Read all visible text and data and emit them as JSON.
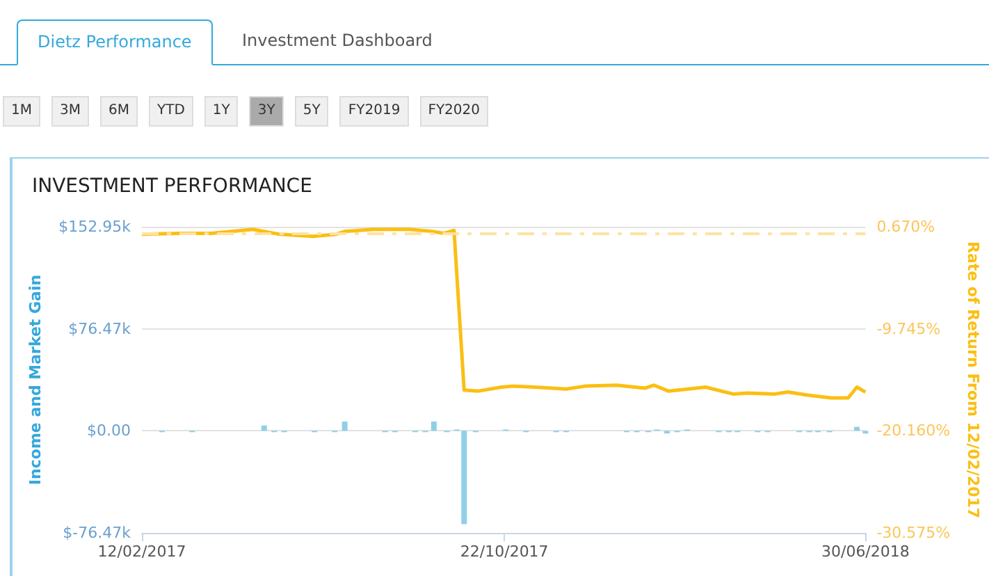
{
  "chart_data": {
    "type": "bar",
    "title": "INVESTMENT PERFORMANCE",
    "ylabel": "Income and Market Gain",
    "y2label": "Rate of Return From 12/02/2017",
    "annotations": [
      "Dietz Performance",
      "Investment Dashboard",
      "1M",
      "3M",
      "6M",
      "YTD",
      "1Y",
      "3Y",
      "5Y",
      "FY2019",
      "FY2020"
    ],
    "series": [
      {
        "color": "#8fd0e8",
        "x": [
          "2017-02-26",
          "2017-03-19",
          "2017-05-08",
          "2017-05-15",
          "2017-05-22",
          "2017-06-12",
          "2017-06-26",
          "2017-07-03",
          "2017-07-31",
          "2017-08-07",
          "2017-08-21",
          "2017-08-28",
          "2017-09-03",
          "2017-09-12",
          "2017-09-19",
          "2017-09-24",
          "2017-10-02",
          "2017-10-23",
          "2017-11-06",
          "2017-11-27",
          "2017-12-04",
          "2018-01-15",
          "2018-01-22",
          "2018-01-30",
          "2018-02-05",
          "2018-02-12",
          "2018-02-19",
          "2018-02-26",
          "2018-03-20",
          "2018-03-27",
          "2018-04-02",
          "2018-04-16",
          "2018-04-23",
          "2018-05-15",
          "2018-05-22",
          "2018-05-28",
          "2018-06-05",
          "2018-06-24",
          "2018-06-30"
        ],
        "values": [
          -1,
          -1,
          4,
          -1,
          -1,
          -1,
          -1,
          7,
          -1,
          -1,
          -1,
          -1,
          7,
          -1,
          1,
          -70,
          -1,
          1,
          -1,
          -1,
          -1,
          -1,
          -1,
          -1,
          1,
          -2,
          -1,
          1,
          -1,
          -1,
          -1,
          -1,
          -1,
          -1,
          -1,
          -1,
          -1,
          3,
          -2
        ]
      },
      {
        "type": "line",
        "axis": "y2",
        "color": "#fbbf12",
        "x": [
          "2017-02-12",
          "2017-03-10",
          "2017-04-01",
          "2017-04-30",
          "2017-05-19",
          "2017-06-11",
          "2017-06-27",
          "2017-07-03",
          "2017-07-23",
          "2017-08-17",
          "2017-09-02",
          "2017-09-10",
          "2017-09-17",
          "2017-09-24",
          "2017-10-04",
          "2017-10-20",
          "2017-10-27",
          "2017-11-12",
          "2017-12-04",
          "2017-12-17",
          "2018-01-08",
          "2018-01-28",
          "2018-02-03",
          "2018-02-13",
          "2018-03-11",
          "2018-03-30",
          "2018-04-09",
          "2018-04-28",
          "2018-05-07",
          "2018-05-20",
          "2018-06-06",
          "2018-06-18",
          "2018-06-24",
          "2018-06-30"
        ],
        "values": [
          -0.1,
          0.0,
          0.0,
          0.4,
          -0.1,
          -0.3,
          -0.1,
          0.2,
          0.4,
          0.4,
          0.2,
          0.0,
          0.3,
          -16.0,
          -16.1,
          -15.7,
          -15.6,
          -15.7,
          -15.9,
          -15.6,
          -15.5,
          -15.8,
          -15.5,
          -16.1,
          -15.7,
          -16.4,
          -16.3,
          -16.4,
          -16.2,
          -16.5,
          -16.8,
          -16.8,
          -15.7,
          -16.2
        ]
      }
    ],
    "xlim": [
      "2017-02-12",
      "2018-06-30"
    ],
    "xticks": [
      {
        "value": "2017-02-12",
        "label": "12/02/2017"
      },
      {
        "value": "2017-10-22",
        "label": "22/10/2017"
      },
      {
        "value": "2018-06-30",
        "label": "30/06/2018"
      }
    ],
    "ylim": [
      -76.47,
      152.95
    ],
    "yticks": [
      {
        "value": -76.47,
        "label": "$-76.47k"
      },
      {
        "value": 0,
        "label": "$0.00"
      },
      {
        "value": 76.47,
        "label": "$76.47k"
      },
      {
        "value": 152.95,
        "label": "$152.95k"
      }
    ],
    "y2lim": [
      -30.575,
      0.67
    ],
    "y2ticks": [
      {
        "value": -30.575,
        "label": "-30.575%"
      },
      {
        "value": -20.16,
        "label": "-20.160%"
      },
      {
        "value": -9.745,
        "label": "-9.745%"
      },
      {
        "value": 0.67,
        "label": "0.670%"
      }
    ],
    "ref_lines": [
      {
        "axis": "y2",
        "value": 0,
        "color": "#fde3a0",
        "line_style": "dashed"
      }
    ],
    "grid": "y"
  }
}
